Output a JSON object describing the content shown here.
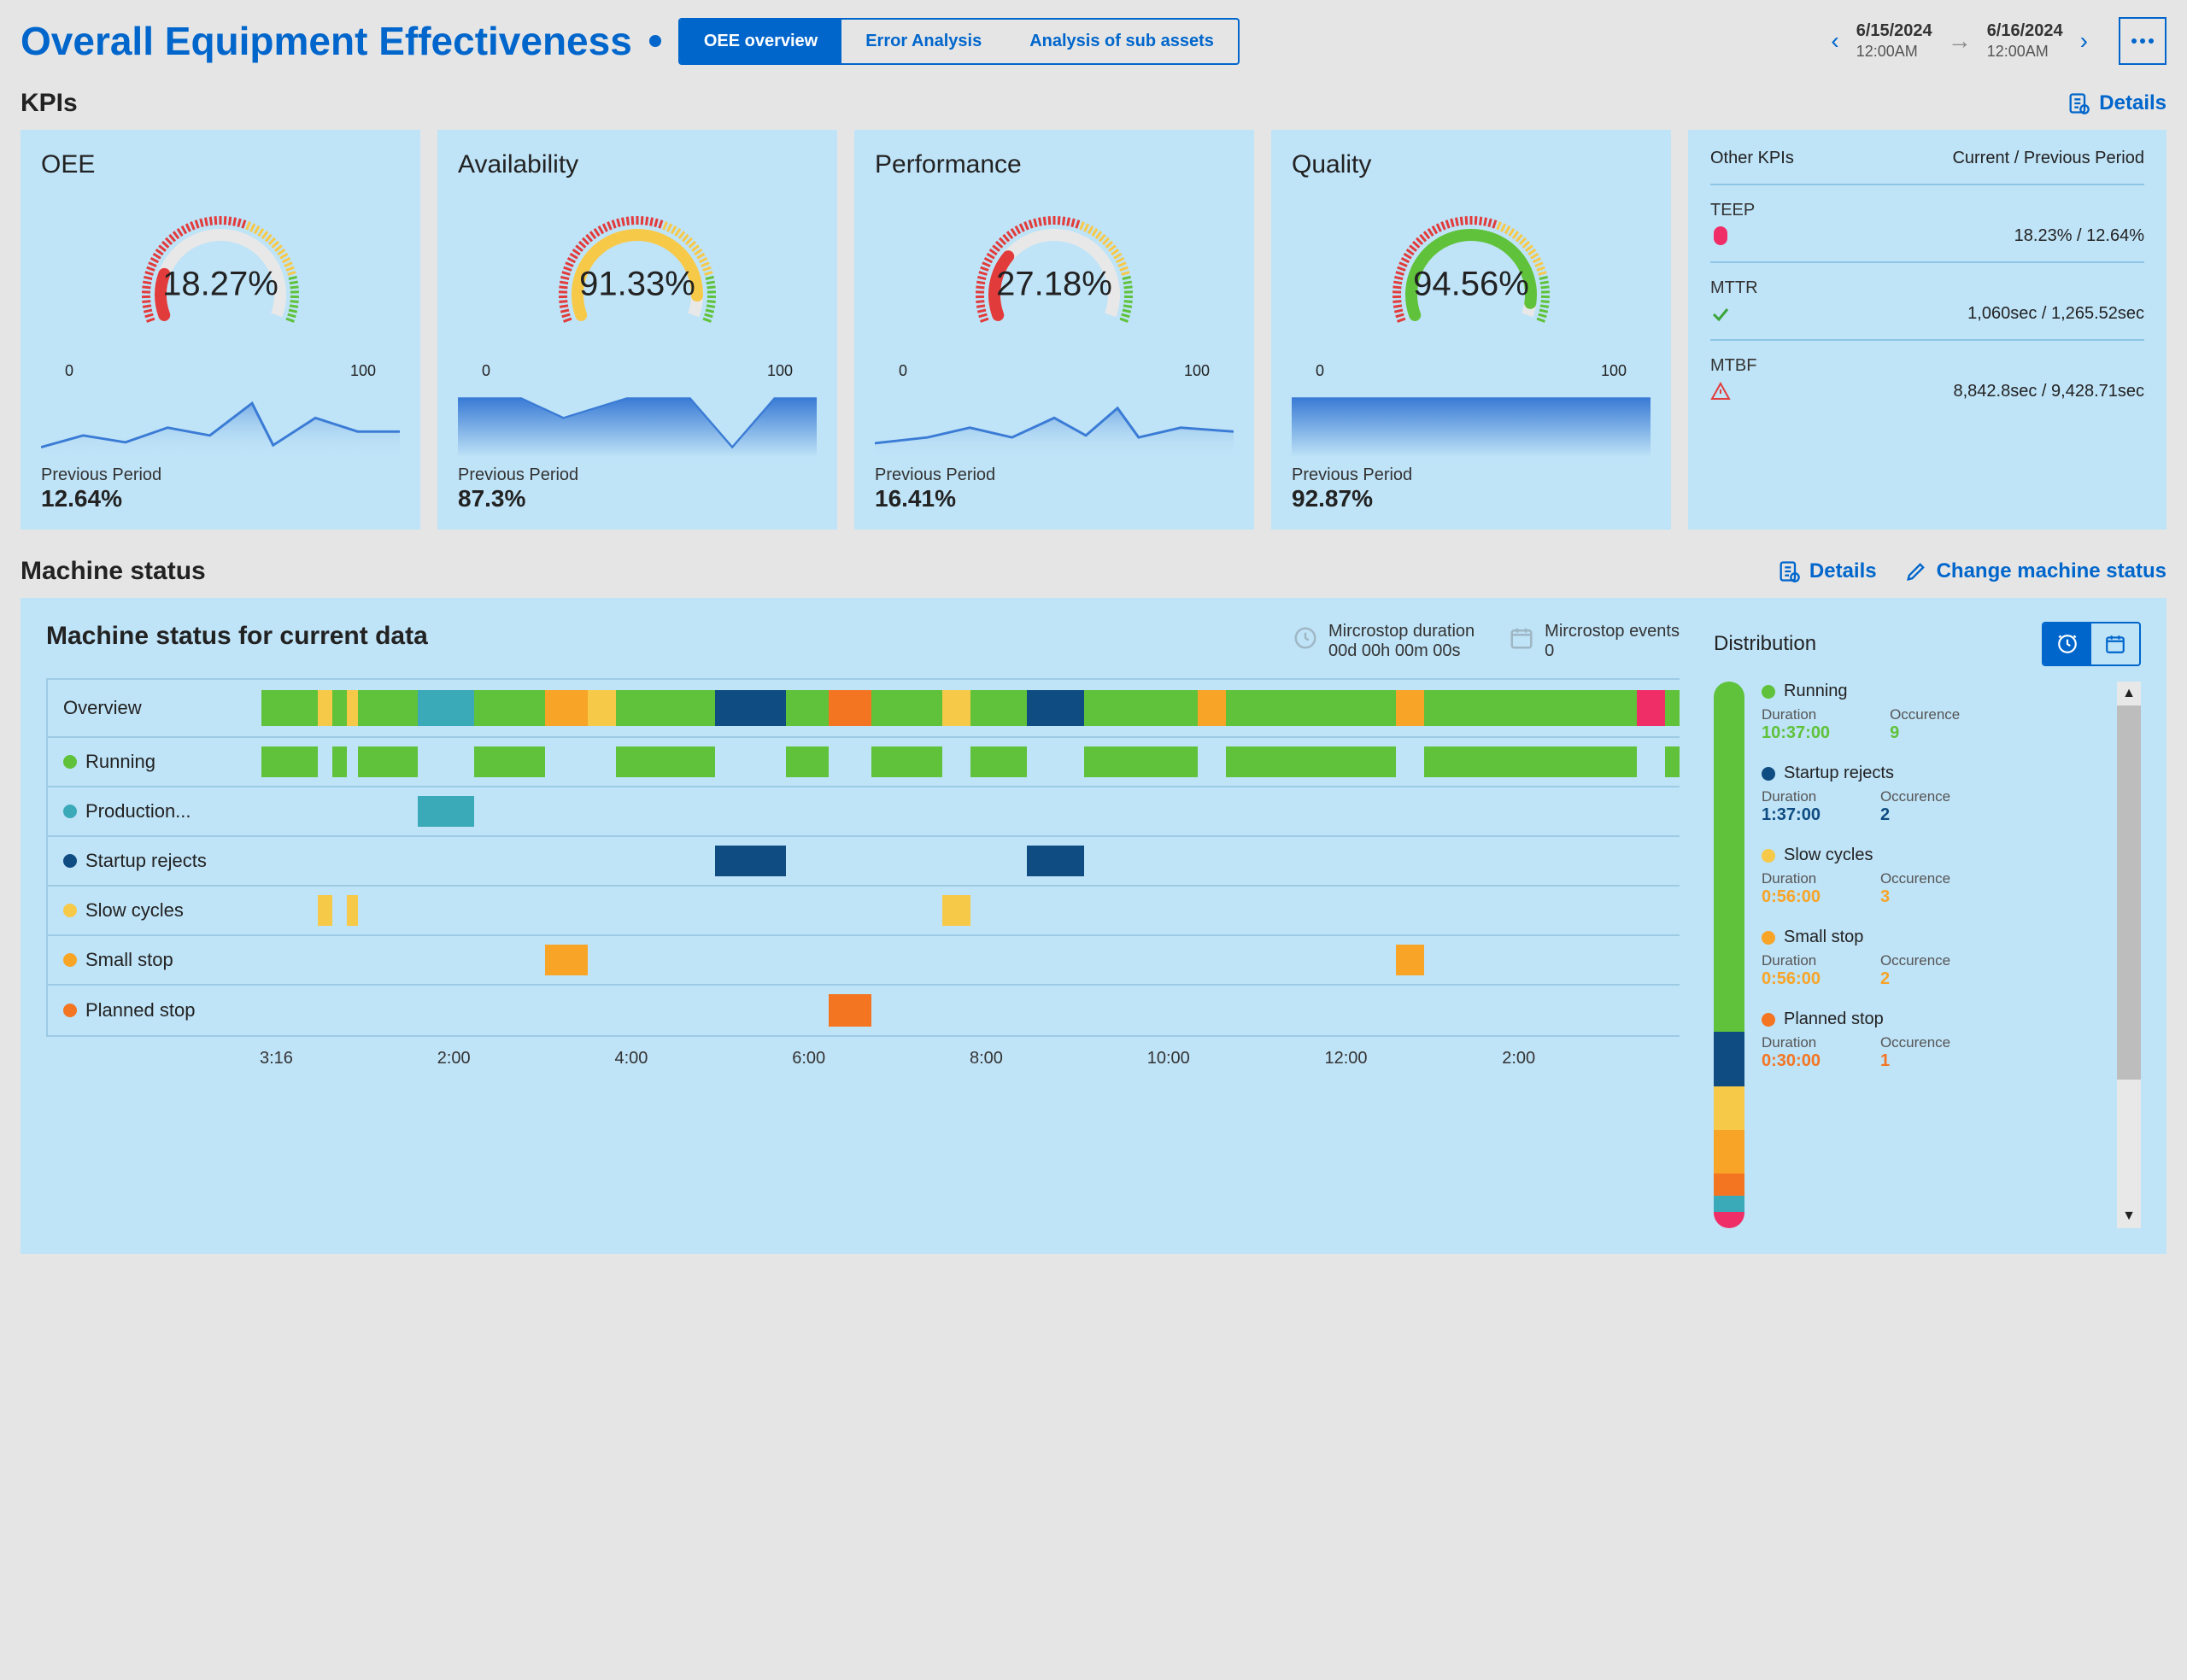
{
  "header": {
    "title": "Overall Equipment Effectiveness",
    "tabs": [
      "OEE overview",
      "Error Analysis",
      "Analysis of sub assets"
    ],
    "active_tab_index": 0,
    "date_from": {
      "date": "6/15/2024",
      "time": "12:00AM"
    },
    "date_to": {
      "date": "6/16/2024",
      "time": "12:00AM"
    }
  },
  "colors": {
    "primary": "#0066cc",
    "card_bg": "#bfe3f7",
    "running": "#5fc23a",
    "production": "#3aa9b8",
    "startup": "#0f4c81",
    "slow": "#f7c948",
    "small": "#f7a427",
    "planned": "#f47521",
    "hotpink": "#ef2e68",
    "red": "#e23b3b"
  },
  "kpis": {
    "section_title": "KPIs",
    "details_label": "Details",
    "cards": [
      {
        "title": "OEE",
        "value": "18.27%",
        "percent": 18.27,
        "arc_color": "#e23b3b",
        "prev_label": "Previous Period",
        "prev_value": "12.64%",
        "spark_poly": "0,60 40,48 80,55 120,40 160,48 200,15 220,58 260,30 300,44 340,44",
        "min": "0",
        "max": "100"
      },
      {
        "title": "Availability",
        "value": "91.33%",
        "percent": 91.33,
        "arc_color": "#f7c948",
        "prev_label": "Previous Period",
        "prev_value": "87.3%",
        "spark_poly": "0,10 60,10 100,30 160,10 220,10 260,60 300,10 340,10",
        "spark_fill": true,
        "min": "0",
        "max": "100"
      },
      {
        "title": "Performance",
        "value": "27.18%",
        "percent": 27.18,
        "arc_color": "#e23b3b",
        "prev_label": "Previous Period",
        "prev_value": "16.41%",
        "spark_poly": "0,56 50,50 90,40 130,50 170,30 200,48 230,20 250,50 290,40 340,44",
        "min": "0",
        "max": "100"
      },
      {
        "title": "Quality",
        "value": "94.56%",
        "percent": 94.56,
        "arc_color": "#5fc23a",
        "prev_label": "Previous Period",
        "prev_value": "92.87%",
        "spark_poly": "0,10 340,10",
        "spark_fill": true,
        "min": "0",
        "max": "100"
      }
    ],
    "other": {
      "title": "Other KPIs",
      "col_label": "Current / Previous Period",
      "rows": [
        {
          "title": "TEEP",
          "icon": "dot-red",
          "value": "18.23% / 12.64%"
        },
        {
          "title": "MTTR",
          "icon": "check-green",
          "value": "1,060sec / 1,265.52sec"
        },
        {
          "title": "MTBF",
          "icon": "warn-red",
          "value": "8,842.8sec / 9,428.71sec"
        }
      ]
    }
  },
  "machine_status": {
    "section_title": "Machine status",
    "details_label": "Details",
    "change_label": "Change machine status",
    "panel_title": "Machine status for current data",
    "microstop_duration_label": "Mircrostop duration",
    "microstop_duration_value": "00d 00h 00m 00s",
    "microstop_events_label": "Mircrostop events",
    "microstop_events_value": "0",
    "rows": [
      {
        "label": "Overview",
        "bullet": null
      },
      {
        "label": "Running",
        "bullet": "#5fc23a"
      },
      {
        "label": "Production...",
        "bullet": "#3aa9b8"
      },
      {
        "label": "Startup rejects",
        "bullet": "#0f4c81"
      },
      {
        "label": "Slow cycles",
        "bullet": "#f7c948"
      },
      {
        "label": "Small stop",
        "bullet": "#f7a427"
      },
      {
        "label": "Planned stop",
        "bullet": "#f47521"
      }
    ],
    "axis": [
      "3:16",
      "2:00",
      "4:00",
      "6:00",
      "8:00",
      "10:00",
      "12:00",
      "2:00"
    ],
    "overview_segments": [
      {
        "s": 0,
        "e": 4,
        "c": "#5fc23a"
      },
      {
        "s": 4,
        "e": 5,
        "c": "#f7c948"
      },
      {
        "s": 5,
        "e": 6,
        "c": "#5fc23a"
      },
      {
        "s": 6,
        "e": 6.8,
        "c": "#f7c948"
      },
      {
        "s": 6.8,
        "e": 11,
        "c": "#5fc23a"
      },
      {
        "s": 11,
        "e": 15,
        "c": "#3aa9b8"
      },
      {
        "s": 15,
        "e": 20,
        "c": "#5fc23a"
      },
      {
        "s": 20,
        "e": 23,
        "c": "#f7a427"
      },
      {
        "s": 23,
        "e": 25,
        "c": "#f7c948"
      },
      {
        "s": 25,
        "e": 32,
        "c": "#5fc23a"
      },
      {
        "s": 32,
        "e": 37,
        "c": "#0f4c81"
      },
      {
        "s": 37,
        "e": 40,
        "c": "#5fc23a"
      },
      {
        "s": 40,
        "e": 43,
        "c": "#f47521"
      },
      {
        "s": 43,
        "e": 48,
        "c": "#5fc23a"
      },
      {
        "s": 48,
        "e": 50,
        "c": "#f7c948"
      },
      {
        "s": 50,
        "e": 54,
        "c": "#5fc23a"
      },
      {
        "s": 54,
        "e": 58,
        "c": "#0f4c81"
      },
      {
        "s": 58,
        "e": 66,
        "c": "#5fc23a"
      },
      {
        "s": 66,
        "e": 68,
        "c": "#f7a427"
      },
      {
        "s": 68,
        "e": 80,
        "c": "#5fc23a"
      },
      {
        "s": 80,
        "e": 82,
        "c": "#f7a427"
      },
      {
        "s": 82,
        "e": 97,
        "c": "#5fc23a"
      },
      {
        "s": 97,
        "e": 99,
        "c": "#ef2e68"
      },
      {
        "s": 99,
        "e": 100,
        "c": "#5fc23a"
      }
    ],
    "running_segments": [
      {
        "s": 0,
        "e": 4
      },
      {
        "s": 5,
        "e": 6
      },
      {
        "s": 6.8,
        "e": 11
      },
      {
        "s": 15,
        "e": 20
      },
      {
        "s": 25,
        "e": 32
      },
      {
        "s": 37,
        "e": 40
      },
      {
        "s": 43,
        "e": 48
      },
      {
        "s": 50,
        "e": 54
      },
      {
        "s": 58,
        "e": 66
      },
      {
        "s": 68,
        "e": 80
      },
      {
        "s": 82,
        "e": 97
      },
      {
        "s": 99,
        "e": 100
      }
    ],
    "production_segments": [
      {
        "s": 11,
        "e": 15
      }
    ],
    "startup_segments": [
      {
        "s": 32,
        "e": 37
      },
      {
        "s": 54,
        "e": 58
      }
    ],
    "slow_segments": [
      {
        "s": 4,
        "e": 5
      },
      {
        "s": 6,
        "e": 6.8
      },
      {
        "s": 48,
        "e": 50
      }
    ],
    "small_segments": [
      {
        "s": 20,
        "e": 23
      },
      {
        "s": 80,
        "e": 82
      }
    ],
    "planned_segments": [
      {
        "s": 40,
        "e": 43
      }
    ],
    "distribution": {
      "title": "Distribution",
      "bar": [
        {
          "c": "#5fc23a",
          "p": 64
        },
        {
          "c": "#0f4c81",
          "p": 10
        },
        {
          "c": "#f7c948",
          "p": 8
        },
        {
          "c": "#f7a427",
          "p": 8
        },
        {
          "c": "#f47521",
          "p": 4
        },
        {
          "c": "#3aa9b8",
          "p": 3
        },
        {
          "c": "#ef2e68",
          "p": 3
        }
      ],
      "items": [
        {
          "title": "Running",
          "bullet": "#5fc23a",
          "duration": "10:37:00",
          "occ": "9",
          "col": "#5fc23a"
        },
        {
          "title": "Startup rejects",
          "bullet": "#0f4c81",
          "duration": "1:37:00",
          "occ": "2",
          "col": "#0f4c81"
        },
        {
          "title": "Slow cycles",
          "bullet": "#f7c948",
          "duration": "0:56:00",
          "occ": "3",
          "col": "#f7a427"
        },
        {
          "title": "Small stop",
          "bullet": "#f7a427",
          "duration": "0:56:00",
          "occ": "2",
          "col": "#f7a427"
        },
        {
          "title": "Planned stop",
          "bullet": "#f47521",
          "duration": "0:30:00",
          "occ": "1",
          "col": "#f47521"
        }
      ],
      "sub_labels": {
        "duration": "Duration",
        "occurence": "Occurence"
      }
    }
  }
}
